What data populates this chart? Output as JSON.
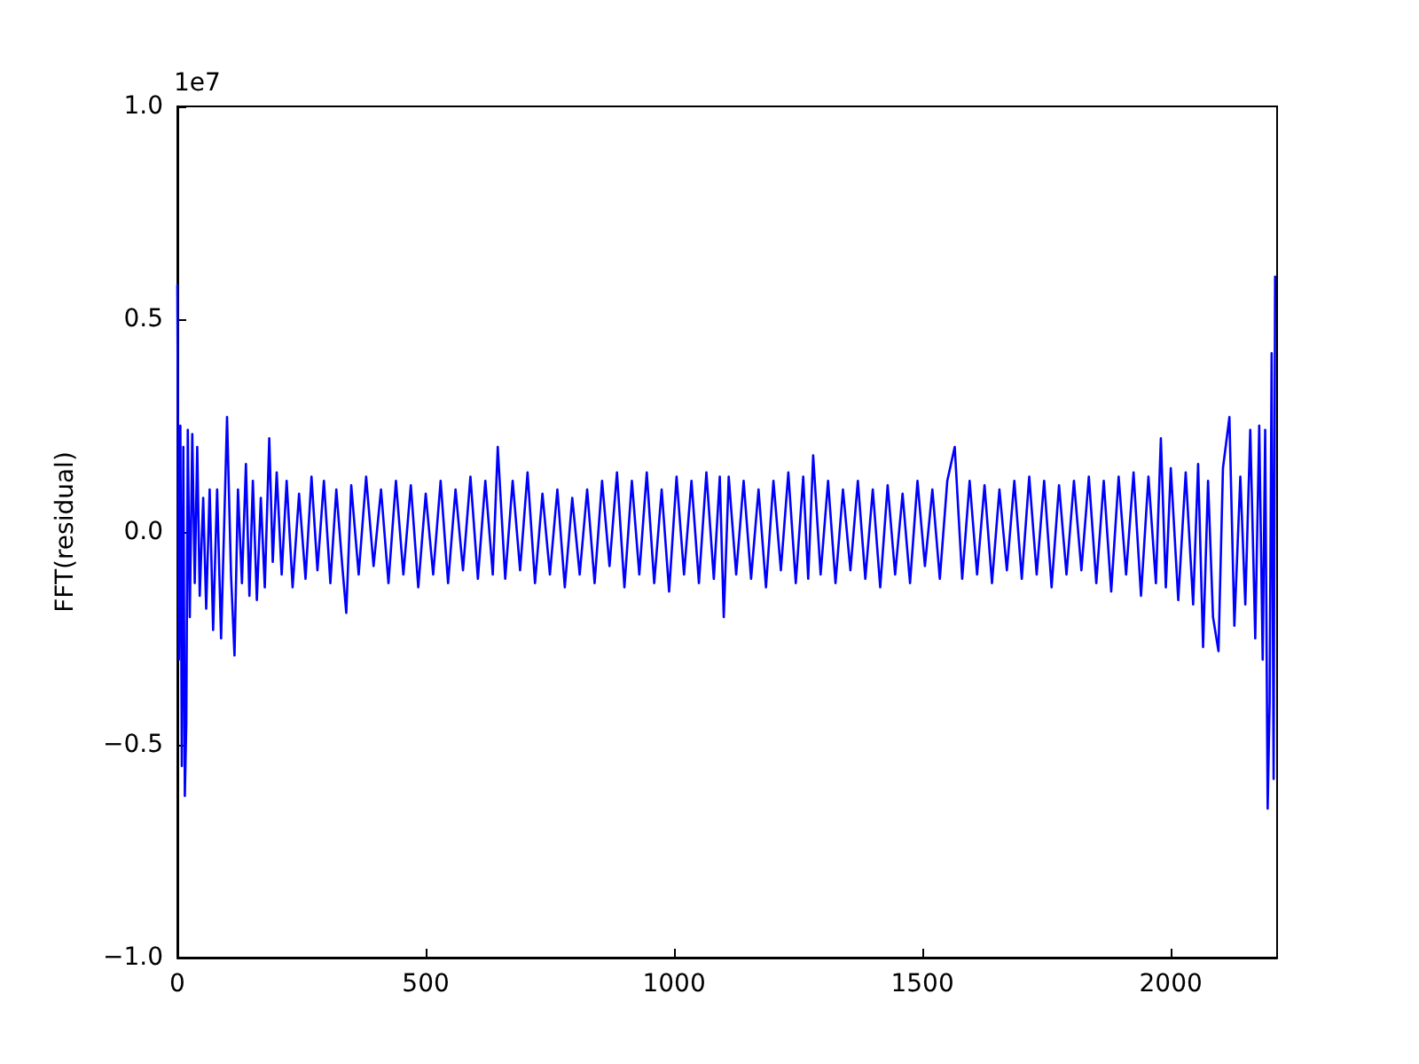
{
  "chart_data": {
    "type": "line",
    "ylabel": "FFT(residual)",
    "annotations": [
      "1e7"
    ],
    "xlim": [
      0,
      2214
    ],
    "xticks": [
      0,
      500,
      1000,
      1500,
      2000
    ],
    "ylim": [
      -1,
      1
    ],
    "yticks": [
      {
        "value": -1,
        "label": "−1.0"
      },
      {
        "value": -0.5,
        "label": "−0.5"
      },
      {
        "value": 0,
        "label": "0.0"
      },
      {
        "value": 0.5,
        "label": "0.5"
      },
      {
        "value": 1,
        "label": "1.0"
      }
    ],
    "grid": false,
    "marker": "none",
    "line_style": "solid",
    "series": [
      {
        "color": "#0000ff",
        "x": [
          0,
          3,
          6,
          9,
          12,
          15,
          18,
          21,
          25,
          30,
          35,
          40,
          45,
          52,
          58,
          65,
          72,
          80,
          88,
          95,
          100,
          108,
          115,
          122,
          130,
          138,
          145,
          152,
          160,
          168,
          176,
          185,
          192,
          200,
          210,
          220,
          232,
          245,
          258,
          270,
          282,
          295,
          308,
          320,
          332,
          340,
          350,
          365,
          380,
          395,
          410,
          425,
          440,
          455,
          470,
          485,
          500,
          515,
          530,
          545,
          560,
          575,
          590,
          605,
          620,
          635,
          645,
          660,
          675,
          690,
          705,
          720,
          735,
          750,
          765,
          780,
          795,
          810,
          825,
          840,
          855,
          870,
          885,
          900,
          915,
          930,
          945,
          960,
          975,
          990,
          1005,
          1020,
          1035,
          1050,
          1065,
          1080,
          1092,
          1100,
          1110,
          1125,
          1140,
          1155,
          1170,
          1185,
          1200,
          1215,
          1230,
          1245,
          1260,
          1270,
          1280,
          1295,
          1310,
          1325,
          1340,
          1355,
          1370,
          1385,
          1400,
          1415,
          1430,
          1445,
          1460,
          1475,
          1490,
          1505,
          1520,
          1535,
          1550,
          1565,
          1580,
          1595,
          1610,
          1625,
          1640,
          1655,
          1670,
          1685,
          1700,
          1715,
          1730,
          1745,
          1760,
          1775,
          1790,
          1805,
          1820,
          1835,
          1850,
          1865,
          1880,
          1895,
          1910,
          1925,
          1940,
          1955,
          1970,
          1980,
          1990,
          2000,
          2015,
          2030,
          2045,
          2055,
          2065,
          2075,
          2085,
          2096,
          2105,
          2118,
          2128,
          2140,
          2150,
          2160,
          2170,
          2178,
          2185,
          2190,
          2195,
          2199,
          2203,
          2207,
          2210
        ],
        "values": [
          0.58,
          -0.3,
          0.25,
          -0.55,
          0.2,
          -0.62,
          -0.45,
          0.24,
          -0.2,
          0.23,
          -0.12,
          0.2,
          -0.15,
          0.08,
          -0.18,
          0.1,
          -0.23,
          0.1,
          -0.25,
          0.05,
          0.27,
          -0.1,
          -0.29,
          0.1,
          -0.12,
          0.16,
          -0.15,
          0.12,
          -0.16,
          0.08,
          -0.13,
          0.22,
          -0.07,
          0.14,
          -0.1,
          0.12,
          -0.13,
          0.09,
          -0.11,
          0.13,
          -0.09,
          0.12,
          -0.12,
          0.1,
          -0.08,
          -0.19,
          0.11,
          -0.1,
          0.13,
          -0.08,
          0.1,
          -0.12,
          0.12,
          -0.1,
          0.11,
          -0.13,
          0.09,
          -0.1,
          0.12,
          -0.12,
          0.1,
          -0.09,
          0.13,
          -0.11,
          0.12,
          -0.1,
          0.2,
          -0.11,
          0.12,
          -0.09,
          0.14,
          -0.12,
          0.09,
          -0.1,
          0.1,
          -0.13,
          0.08,
          -0.1,
          0.1,
          -0.12,
          0.12,
          -0.08,
          0.14,
          -0.13,
          0.12,
          -0.1,
          0.14,
          -0.12,
          0.1,
          -0.14,
          0.13,
          -0.1,
          0.12,
          -0.12,
          0.14,
          -0.11,
          0.13,
          -0.2,
          0.13,
          -0.1,
          0.12,
          -0.11,
          0.1,
          -0.13,
          0.12,
          -0.09,
          0.14,
          -0.12,
          0.13,
          -0.11,
          0.18,
          -0.1,
          0.12,
          -0.12,
          0.1,
          -0.09,
          0.12,
          -0.11,
          0.1,
          -0.13,
          0.11,
          -0.1,
          0.09,
          -0.12,
          0.12,
          -0.08,
          0.1,
          -0.11,
          0.12,
          0.2,
          -0.11,
          0.12,
          -0.1,
          0.11,
          -0.12,
          0.1,
          -0.09,
          0.12,
          -0.11,
          0.13,
          -0.1,
          0.12,
          -0.13,
          0.11,
          -0.1,
          0.12,
          -0.09,
          0.13,
          -0.12,
          0.12,
          -0.14,
          0.13,
          -0.1,
          0.14,
          -0.15,
          0.13,
          -0.12,
          0.22,
          -0.13,
          0.15,
          -0.16,
          0.14,
          -0.17,
          0.16,
          -0.27,
          0.12,
          -0.2,
          -0.28,
          0.15,
          0.27,
          -0.22,
          0.13,
          -0.17,
          0.24,
          -0.25,
          0.25,
          -0.3,
          0.24,
          -0.65,
          -0.4,
          0.42,
          -0.58,
          0.6
        ]
      }
    ]
  }
}
